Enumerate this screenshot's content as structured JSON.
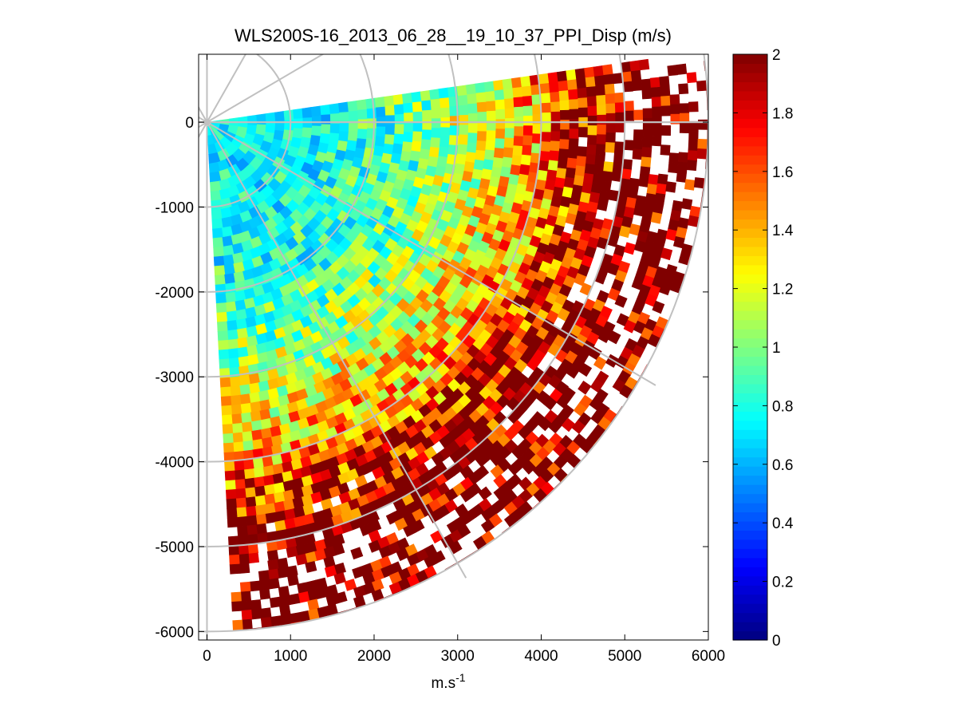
{
  "chart_data": {
    "type": "heatmap",
    "subtype": "polar-sector-ppi",
    "title": "WLS200S-16_2013_06_28__19_10_37_PPI_Disp (m/s)",
    "xlabel": "m.s",
    "xlabel_superscript": "-1",
    "ylabel": "",
    "xlim": [
      -100,
      6000
    ],
    "ylim": [
      -6100,
      800
    ],
    "x_ticks": [
      0,
      1000,
      2000,
      3000,
      4000,
      5000,
      6000
    ],
    "x_tick_labels": [
      "0",
      "1000",
      "2000",
      "3000",
      "4000",
      "5000",
      "6000"
    ],
    "y_ticks": [
      0,
      -1000,
      -2000,
      -3000,
      -4000,
      -5000,
      -6000
    ],
    "y_tick_labels": [
      "0",
      "-1000",
      "-2000",
      "-3000",
      "-4000",
      "-5000",
      "-6000"
    ],
    "sector": {
      "azimuth_start_deg": 82,
      "azimuth_end_deg": 177,
      "max_range_m": 6000,
      "min_range_m": 50
    },
    "polar_grid": {
      "rings_m": [
        1000,
        2000,
        3000,
        4000,
        5000,
        6000
      ],
      "spokes_deg": [
        0,
        30,
        60,
        90,
        120,
        150,
        180
      ],
      "color": "#c0c0c0"
    },
    "value_range_trend": [
      {
        "range_m": 500,
        "value": 0.75
      },
      {
        "range_m": 1500,
        "value": 0.78
      },
      {
        "range_m": 2500,
        "value": 0.95
      },
      {
        "range_m": 3500,
        "value": 1.25
      },
      {
        "range_m": 4500,
        "value": 1.7
      },
      {
        "range_m": 5500,
        "value": 2.0
      }
    ],
    "colorbar": {
      "colormap": "jet",
      "min": 0,
      "max": 2,
      "ticks": [
        0,
        0.2,
        0.4,
        0.6,
        0.8,
        1,
        1.2,
        1.4,
        1.6,
        1.8,
        2
      ],
      "tick_labels": [
        "0",
        "0.2",
        "0.4",
        "0.6",
        "0.8",
        "1",
        "1.2",
        "1.4",
        "1.6",
        "1.8",
        "2"
      ]
    }
  }
}
